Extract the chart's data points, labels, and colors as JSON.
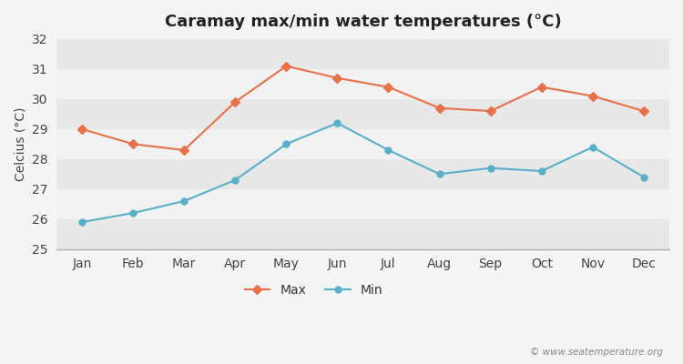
{
  "title": "Caramay max/min water temperatures (°C)",
  "ylabel": "Celcius (°C)",
  "months": [
    "Jan",
    "Feb",
    "Mar",
    "Apr",
    "May",
    "Jun",
    "Jul",
    "Aug",
    "Sep",
    "Oct",
    "Nov",
    "Dec"
  ],
  "max_temps": [
    29.0,
    28.5,
    28.3,
    29.9,
    31.1,
    30.7,
    30.4,
    29.7,
    29.6,
    30.4,
    30.1,
    29.6
  ],
  "min_temps": [
    25.9,
    26.2,
    26.6,
    27.3,
    28.5,
    29.2,
    28.3,
    27.5,
    27.7,
    27.6,
    28.4,
    27.4
  ],
  "ylim": [
    25,
    32
  ],
  "yticks": [
    25,
    26,
    27,
    28,
    29,
    30,
    31,
    32
  ],
  "max_color": "#e8714a",
  "min_color": "#5aafc8",
  "bg_color": "#f5f5f5",
  "band_colors": [
    "#e8e8e8",
    "#f2f2f2"
  ],
  "copyright_text": "© www.seatemperature.org",
  "title_fontsize": 13,
  "label_fontsize": 10,
  "tick_fontsize": 10
}
